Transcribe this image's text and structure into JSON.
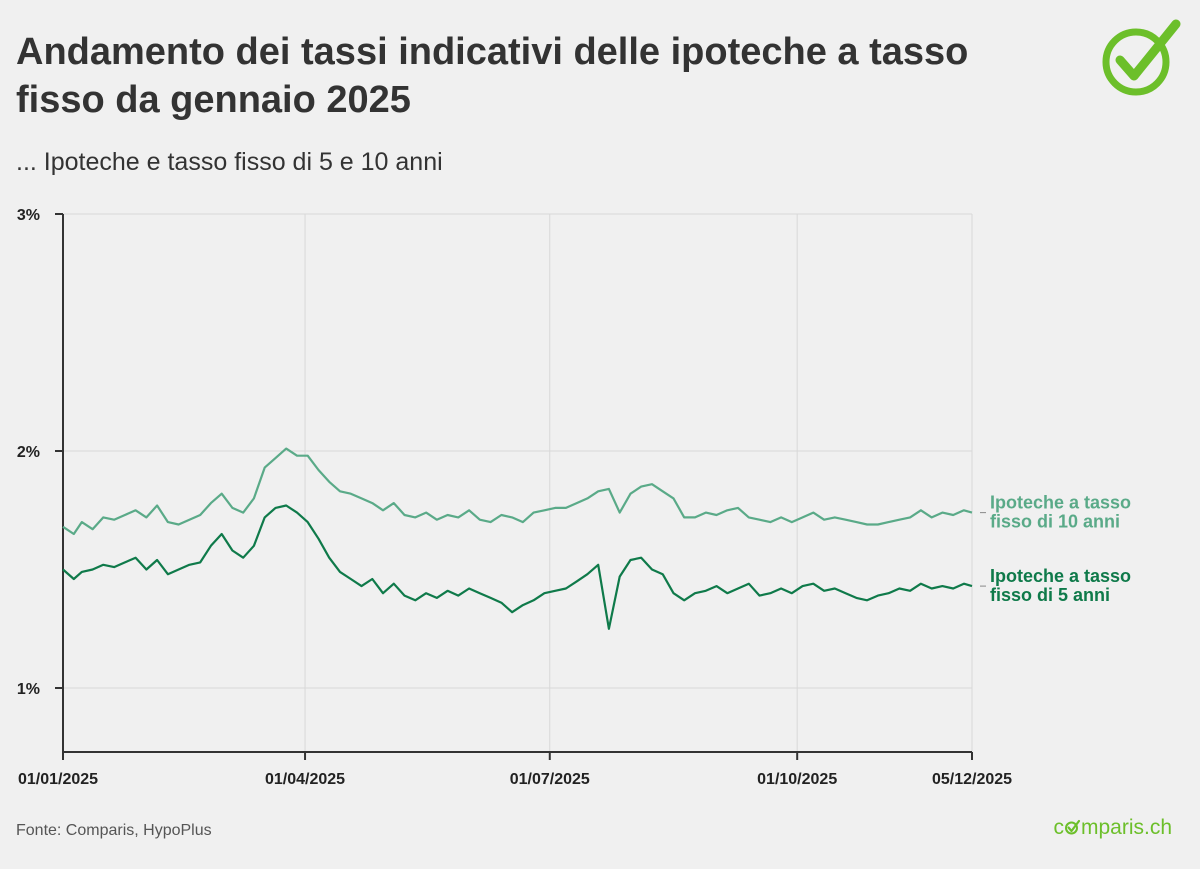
{
  "header": {
    "title": "Andamento dei tassi indicativi delle ipoteche a tasso fisso da gennaio 2025",
    "subtitle": "... Ipoteche e tasso fisso di 5 e 10 anni"
  },
  "footer": {
    "source": "Fonte: Comparis, HypoPlus",
    "brand_pre": "c",
    "brand_post": "mparis.ch"
  },
  "colors": {
    "background": "#f0f0f0",
    "series_10y": "#5aaa88",
    "series_5y": "#0f7a4a",
    "brand_green": "#6cbf2a",
    "grid": "#d8d8d8",
    "axis": "#333333"
  },
  "icons": [
    "check-circle-icon"
  ],
  "chart_data": {
    "type": "line",
    "title": "Andamento dei tassi indicativi delle ipoteche a tasso fisso da gennaio 2025",
    "subtitle": "... Ipoteche e tasso fisso di 5 e 10 anni",
    "xlabel": "",
    "ylabel": "",
    "xlim": [
      "2025-01-01",
      "2025-12-05"
    ],
    "ylim": [
      0.0073,
      0.03
    ],
    "y_tick_values": [
      0.01,
      0.02,
      0.03
    ],
    "y_tick_labels": [
      "1%",
      "2%",
      "3%"
    ],
    "x_tick_values": [
      "2025-01-01",
      "2025-04-01",
      "2025-07-01",
      "2025-10-01",
      "2025-12-05"
    ],
    "x_tick_labels": [
      "01/01/2025",
      "01/04/2025",
      "01/07/2025",
      "01/10/2025",
      "05/12/2025"
    ],
    "grid": true,
    "legend": "direct labels at right end of lines",
    "series": [
      {
        "name": "Ipoteche a tasso fisso di 10 anni",
        "color": "#5aaa88",
        "x": [
          "2025-01-01",
          "2025-01-05",
          "2025-01-08",
          "2025-01-12",
          "2025-01-16",
          "2025-01-20",
          "2025-01-24",
          "2025-01-28",
          "2025-02-01",
          "2025-02-05",
          "2025-02-09",
          "2025-02-13",
          "2025-02-17",
          "2025-02-21",
          "2025-02-25",
          "2025-03-01",
          "2025-03-05",
          "2025-03-09",
          "2025-03-13",
          "2025-03-17",
          "2025-03-21",
          "2025-03-25",
          "2025-03-29",
          "2025-04-02",
          "2025-04-06",
          "2025-04-10",
          "2025-04-14",
          "2025-04-18",
          "2025-04-22",
          "2025-04-26",
          "2025-04-30",
          "2025-05-04",
          "2025-05-08",
          "2025-05-12",
          "2025-05-16",
          "2025-05-20",
          "2025-05-24",
          "2025-05-28",
          "2025-06-01",
          "2025-06-05",
          "2025-06-09",
          "2025-06-13",
          "2025-06-17",
          "2025-06-21",
          "2025-06-25",
          "2025-06-29",
          "2025-07-03",
          "2025-07-07",
          "2025-07-11",
          "2025-07-15",
          "2025-07-19",
          "2025-07-23",
          "2025-07-27",
          "2025-07-31",
          "2025-08-04",
          "2025-08-08",
          "2025-08-12",
          "2025-08-16",
          "2025-08-20",
          "2025-08-24",
          "2025-08-28",
          "2025-09-01",
          "2025-09-05",
          "2025-09-09",
          "2025-09-13",
          "2025-09-17",
          "2025-09-21",
          "2025-09-25",
          "2025-09-29",
          "2025-10-03",
          "2025-10-07",
          "2025-10-11",
          "2025-10-15",
          "2025-10-19",
          "2025-10-23",
          "2025-10-27",
          "2025-10-31",
          "2025-11-04",
          "2025-11-08",
          "2025-11-12",
          "2025-11-16",
          "2025-11-20",
          "2025-11-24",
          "2025-11-28",
          "2025-12-02",
          "2025-12-05"
        ],
        "y": [
          0.0168,
          0.0165,
          0.017,
          0.0167,
          0.0172,
          0.0171,
          0.0173,
          0.0175,
          0.0172,
          0.0177,
          0.017,
          0.0169,
          0.0171,
          0.0173,
          0.0178,
          0.0182,
          0.0176,
          0.0174,
          0.018,
          0.0193,
          0.0197,
          0.0201,
          0.0198,
          0.0198,
          0.0192,
          0.0187,
          0.0183,
          0.0182,
          0.018,
          0.0178,
          0.0175,
          0.0178,
          0.0173,
          0.0172,
          0.0174,
          0.0171,
          0.0173,
          0.0172,
          0.0175,
          0.0171,
          0.017,
          0.0173,
          0.0172,
          0.017,
          0.0174,
          0.0175,
          0.0176,
          0.0176,
          0.0178,
          0.018,
          0.0183,
          0.0184,
          0.0174,
          0.0182,
          0.0185,
          0.0186,
          0.0183,
          0.018,
          0.0172,
          0.0172,
          0.0174,
          0.0173,
          0.0175,
          0.0176,
          0.0172,
          0.0171,
          0.017,
          0.0172,
          0.017,
          0.0172,
          0.0174,
          0.0171,
          0.0172,
          0.0171,
          0.017,
          0.0169,
          0.0169,
          0.017,
          0.0171,
          0.0172,
          0.0175,
          0.0172,
          0.0174,
          0.0173,
          0.0175,
          0.0174
        ]
      },
      {
        "name": "Ipoteche a tasso fisso di 5 anni",
        "color": "#0f7a4a",
        "x": [
          "2025-01-01",
          "2025-01-05",
          "2025-01-08",
          "2025-01-12",
          "2025-01-16",
          "2025-01-20",
          "2025-01-24",
          "2025-01-28",
          "2025-02-01",
          "2025-02-05",
          "2025-02-09",
          "2025-02-13",
          "2025-02-17",
          "2025-02-21",
          "2025-02-25",
          "2025-03-01",
          "2025-03-05",
          "2025-03-09",
          "2025-03-13",
          "2025-03-17",
          "2025-03-21",
          "2025-03-25",
          "2025-03-29",
          "2025-04-02",
          "2025-04-06",
          "2025-04-10",
          "2025-04-14",
          "2025-04-18",
          "2025-04-22",
          "2025-04-26",
          "2025-04-30",
          "2025-05-04",
          "2025-05-08",
          "2025-05-12",
          "2025-05-16",
          "2025-05-20",
          "2025-05-24",
          "2025-05-28",
          "2025-06-01",
          "2025-06-05",
          "2025-06-09",
          "2025-06-13",
          "2025-06-17",
          "2025-06-21",
          "2025-06-25",
          "2025-06-29",
          "2025-07-03",
          "2025-07-07",
          "2025-07-11",
          "2025-07-15",
          "2025-07-19",
          "2025-07-23",
          "2025-07-27",
          "2025-07-31",
          "2025-08-04",
          "2025-08-08",
          "2025-08-12",
          "2025-08-16",
          "2025-08-20",
          "2025-08-24",
          "2025-08-28",
          "2025-09-01",
          "2025-09-05",
          "2025-09-09",
          "2025-09-13",
          "2025-09-17",
          "2025-09-21",
          "2025-09-25",
          "2025-09-29",
          "2025-10-03",
          "2025-10-07",
          "2025-10-11",
          "2025-10-15",
          "2025-10-19",
          "2025-10-23",
          "2025-10-27",
          "2025-10-31",
          "2025-11-04",
          "2025-11-08",
          "2025-11-12",
          "2025-11-16",
          "2025-11-20",
          "2025-11-24",
          "2025-11-28",
          "2025-12-02",
          "2025-12-05"
        ],
        "y": [
          0.015,
          0.0146,
          0.0149,
          0.015,
          0.0152,
          0.0151,
          0.0153,
          0.0155,
          0.015,
          0.0154,
          0.0148,
          0.015,
          0.0152,
          0.0153,
          0.016,
          0.0165,
          0.0158,
          0.0155,
          0.016,
          0.0172,
          0.0176,
          0.0177,
          0.0174,
          0.017,
          0.0163,
          0.0155,
          0.0149,
          0.0146,
          0.0143,
          0.0146,
          0.014,
          0.0144,
          0.0139,
          0.0137,
          0.014,
          0.0138,
          0.0141,
          0.0139,
          0.0142,
          0.014,
          0.0138,
          0.0136,
          0.0132,
          0.0135,
          0.0137,
          0.014,
          0.0141,
          0.0142,
          0.0145,
          0.0148,
          0.0152,
          0.0125,
          0.0147,
          0.0154,
          0.0155,
          0.015,
          0.0148,
          0.014,
          0.0137,
          0.014,
          0.0141,
          0.0143,
          0.014,
          0.0142,
          0.0144,
          0.0139,
          0.014,
          0.0142,
          0.014,
          0.0143,
          0.0144,
          0.0141,
          0.0142,
          0.014,
          0.0138,
          0.0137,
          0.0139,
          0.014,
          0.0142,
          0.0141,
          0.0144,
          0.0142,
          0.0143,
          0.0142,
          0.0144,
          0.0143
        ]
      }
    ],
    "direct_labels": [
      {
        "series": 0,
        "lines": [
          "Ipoteche a tasso",
          "fisso di 10 anni"
        ]
      },
      {
        "series": 1,
        "lines": [
          "Ipoteche a tasso",
          "fisso di 5 anni"
        ]
      }
    ]
  }
}
